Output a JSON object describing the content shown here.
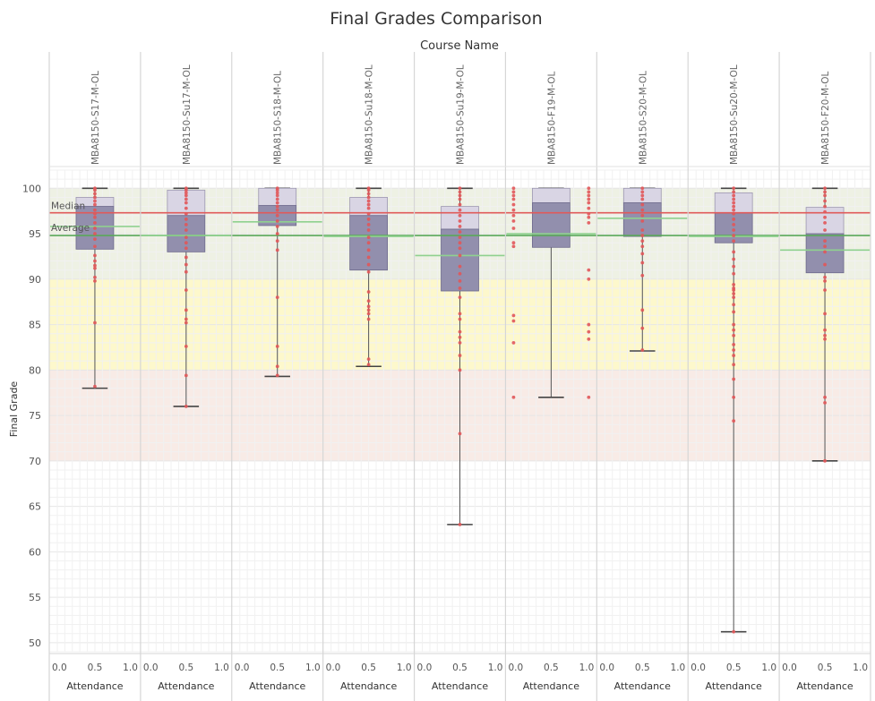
{
  "chart_data": {
    "type": "box",
    "title": "Final Grades Comparison",
    "column_axis_title": "Course Name",
    "ylabel": "Final Grade",
    "xlabel": "Attendance",
    "ylim": [
      49,
      102
    ],
    "y_ticks": [
      50,
      55,
      60,
      65,
      70,
      75,
      80,
      85,
      90,
      95,
      100
    ],
    "x_ticks": [
      "0.0",
      "0.5",
      "1.0"
    ],
    "reference_lines": {
      "median": {
        "label": "Median",
        "value": 97.3,
        "color": "#e05a5a"
      },
      "average": {
        "label": "Average",
        "value": 94.8,
        "color": "#5aa85a"
      }
    },
    "bands": [
      {
        "from": 90,
        "to": 100,
        "color": "#eef1e4"
      },
      {
        "from": 80,
        "to": 90,
        "color": "#fdf8cc"
      },
      {
        "from": 70,
        "to": 80,
        "color": "#f8ebe6"
      }
    ],
    "courses": [
      {
        "name": "MBA8150-S17-M-OL",
        "min": 78,
        "q1": 93.3,
        "median": 98,
        "q3": 99,
        "max": 100,
        "average": 95.8,
        "points": [
          100,
          99.8,
          99.4,
          99,
          98.6,
          98.2,
          97.6,
          97.2,
          96.8,
          96.2,
          95.6,
          95,
          94.4,
          93.6,
          92.6,
          92,
          91.5,
          91.2,
          90.2,
          89.8,
          85.2,
          78.2
        ]
      },
      {
        "name": "MBA8150-Su17-M-OL",
        "min": 76,
        "q1": 93,
        "median": 97,
        "q3": 99.8,
        "max": 100,
        "average": 94.8,
        "points": [
          100,
          99.8,
          99.5,
          99.2,
          98.8,
          98.4,
          97.8,
          97.2,
          96.6,
          96,
          95.4,
          94.6,
          94,
          93.4,
          92.4,
          91.6,
          90.8,
          88.8,
          86.6,
          85.6,
          85.2,
          82.6,
          79.4,
          76
        ]
      },
      {
        "name": "MBA8150-S18-M-OL",
        "min": 79.3,
        "q1": 95.9,
        "median": 98.1,
        "q3": 100,
        "max": 100,
        "average": 96.3,
        "points": [
          100,
          99.8,
          99.5,
          99.2,
          98.8,
          98.4,
          98,
          97.6,
          97,
          96.4,
          95.8,
          95,
          94.2,
          93.2,
          88,
          82.6,
          80.4,
          79.4
        ]
      },
      {
        "name": "MBA8150-Su18-M-OL",
        "min": 80.4,
        "q1": 91,
        "median": 97,
        "q3": 99,
        "max": 100,
        "average": 94.7,
        "points": [
          100,
          99.8,
          99.4,
          99,
          98.6,
          98.2,
          97.8,
          97.2,
          96.6,
          96,
          95.4,
          94.6,
          94,
          93.2,
          92.4,
          91.6,
          90.8,
          88.6,
          87.6,
          87,
          86.6,
          86.2,
          85.6,
          81.2,
          80.6
        ]
      },
      {
        "name": "MBA8150-Su19-M-OL",
        "min": 63,
        "q1": 88.7,
        "median": 95.5,
        "q3": 98,
        "max": 100,
        "average": 92.6,
        "points": [
          100,
          99.6,
          99.2,
          98.8,
          98.2,
          97.6,
          97,
          96.4,
          95.8,
          95.2,
          94.6,
          94,
          93.4,
          92.6,
          91.4,
          90.6,
          89.8,
          89,
          88,
          86.2,
          85.6,
          84.2,
          83.6,
          83,
          81.6,
          80,
          73,
          63
        ]
      },
      {
        "name": "MBA8150-F19-M-OL",
        "min": 77,
        "q1": 93.5,
        "median": 98.4,
        "q3": 100,
        "max": 100,
        "average": 95,
        "points": [
          {
            "x": 0.0,
            "y": 100
          },
          {
            "x": 0.0,
            "y": 99.6
          },
          {
            "x": 0.0,
            "y": 99.2
          },
          {
            "x": 0.0,
            "y": 98.8
          },
          {
            "x": 0.0,
            "y": 98.2
          },
          {
            "x": 0.0,
            "y": 97.6
          },
          {
            "x": 0.0,
            "y": 97
          },
          {
            "x": 0.0,
            "y": 96.4
          },
          {
            "x": 0.0,
            "y": 95.6
          },
          {
            "x": 0.0,
            "y": 94
          },
          {
            "x": 0.0,
            "y": 93.6
          },
          {
            "x": 0.0,
            "y": 86
          },
          {
            "x": 0.0,
            "y": 85.4
          },
          {
            "x": 0.0,
            "y": 83
          },
          {
            "x": 0.0,
            "y": 77
          },
          {
            "x": 1.0,
            "y": 100
          },
          {
            "x": 1.0,
            "y": 99.6
          },
          {
            "x": 1.0,
            "y": 99.2
          },
          {
            "x": 1.0,
            "y": 98.8
          },
          {
            "x": 1.0,
            "y": 98.4
          },
          {
            "x": 1.0,
            "y": 97.8
          },
          {
            "x": 1.0,
            "y": 97.2
          },
          {
            "x": 1.0,
            "y": 96.8
          },
          {
            "x": 1.0,
            "y": 96.2
          },
          {
            "x": 1.0,
            "y": 91
          },
          {
            "x": 1.0,
            "y": 90
          },
          {
            "x": 1.0,
            "y": 85
          },
          {
            "x": 1.0,
            "y": 84.2
          },
          {
            "x": 1.0,
            "y": 83.4
          },
          {
            "x": 1.0,
            "y": 77
          }
        ]
      },
      {
        "name": "MBA8150-S20-M-OL",
        "min": 82.1,
        "q1": 94.7,
        "median": 98.4,
        "q3": 100,
        "max": 100,
        "average": 96.7,
        "points": [
          100,
          99.6,
          99.2,
          98.8,
          98.2,
          97.6,
          97,
          96.4,
          95.4,
          94.8,
          94.2,
          93.6,
          92.8,
          91.8,
          90.4,
          86.6,
          84.6,
          82.2
        ]
      },
      {
        "name": "MBA8150-Su20-M-OL",
        "min": 51.2,
        "q1": 94,
        "median": 97.3,
        "q3": 99.5,
        "max": 100,
        "average": 94.7,
        "points": [
          100,
          99.6,
          99.2,
          98.8,
          98.4,
          98,
          97.6,
          97.2,
          96.6,
          96,
          95.4,
          94.8,
          94.2,
          93,
          92.2,
          91.4,
          90.6,
          89.4,
          89,
          88.8,
          88.4,
          88,
          87.2,
          86.4,
          85,
          84.4,
          83.8,
          82.8,
          82.2,
          81.6,
          80.6,
          79,
          77,
          74.4,
          51.2
        ]
      },
      {
        "name": "MBA8150-F20-M-OL",
        "min": 70,
        "q1": 90.7,
        "median": 95,
        "q3": 97.9,
        "max": 100,
        "average": 93.2,
        "points": [
          100,
          99.6,
          99.2,
          98.6,
          98,
          97.4,
          96.8,
          96.2,
          95.4,
          94.2,
          93.6,
          93,
          91.6,
          90.2,
          89.8,
          88.8,
          86.2,
          84.4,
          83.8,
          83.4,
          77,
          76.4,
          70
        ]
      }
    ]
  }
}
